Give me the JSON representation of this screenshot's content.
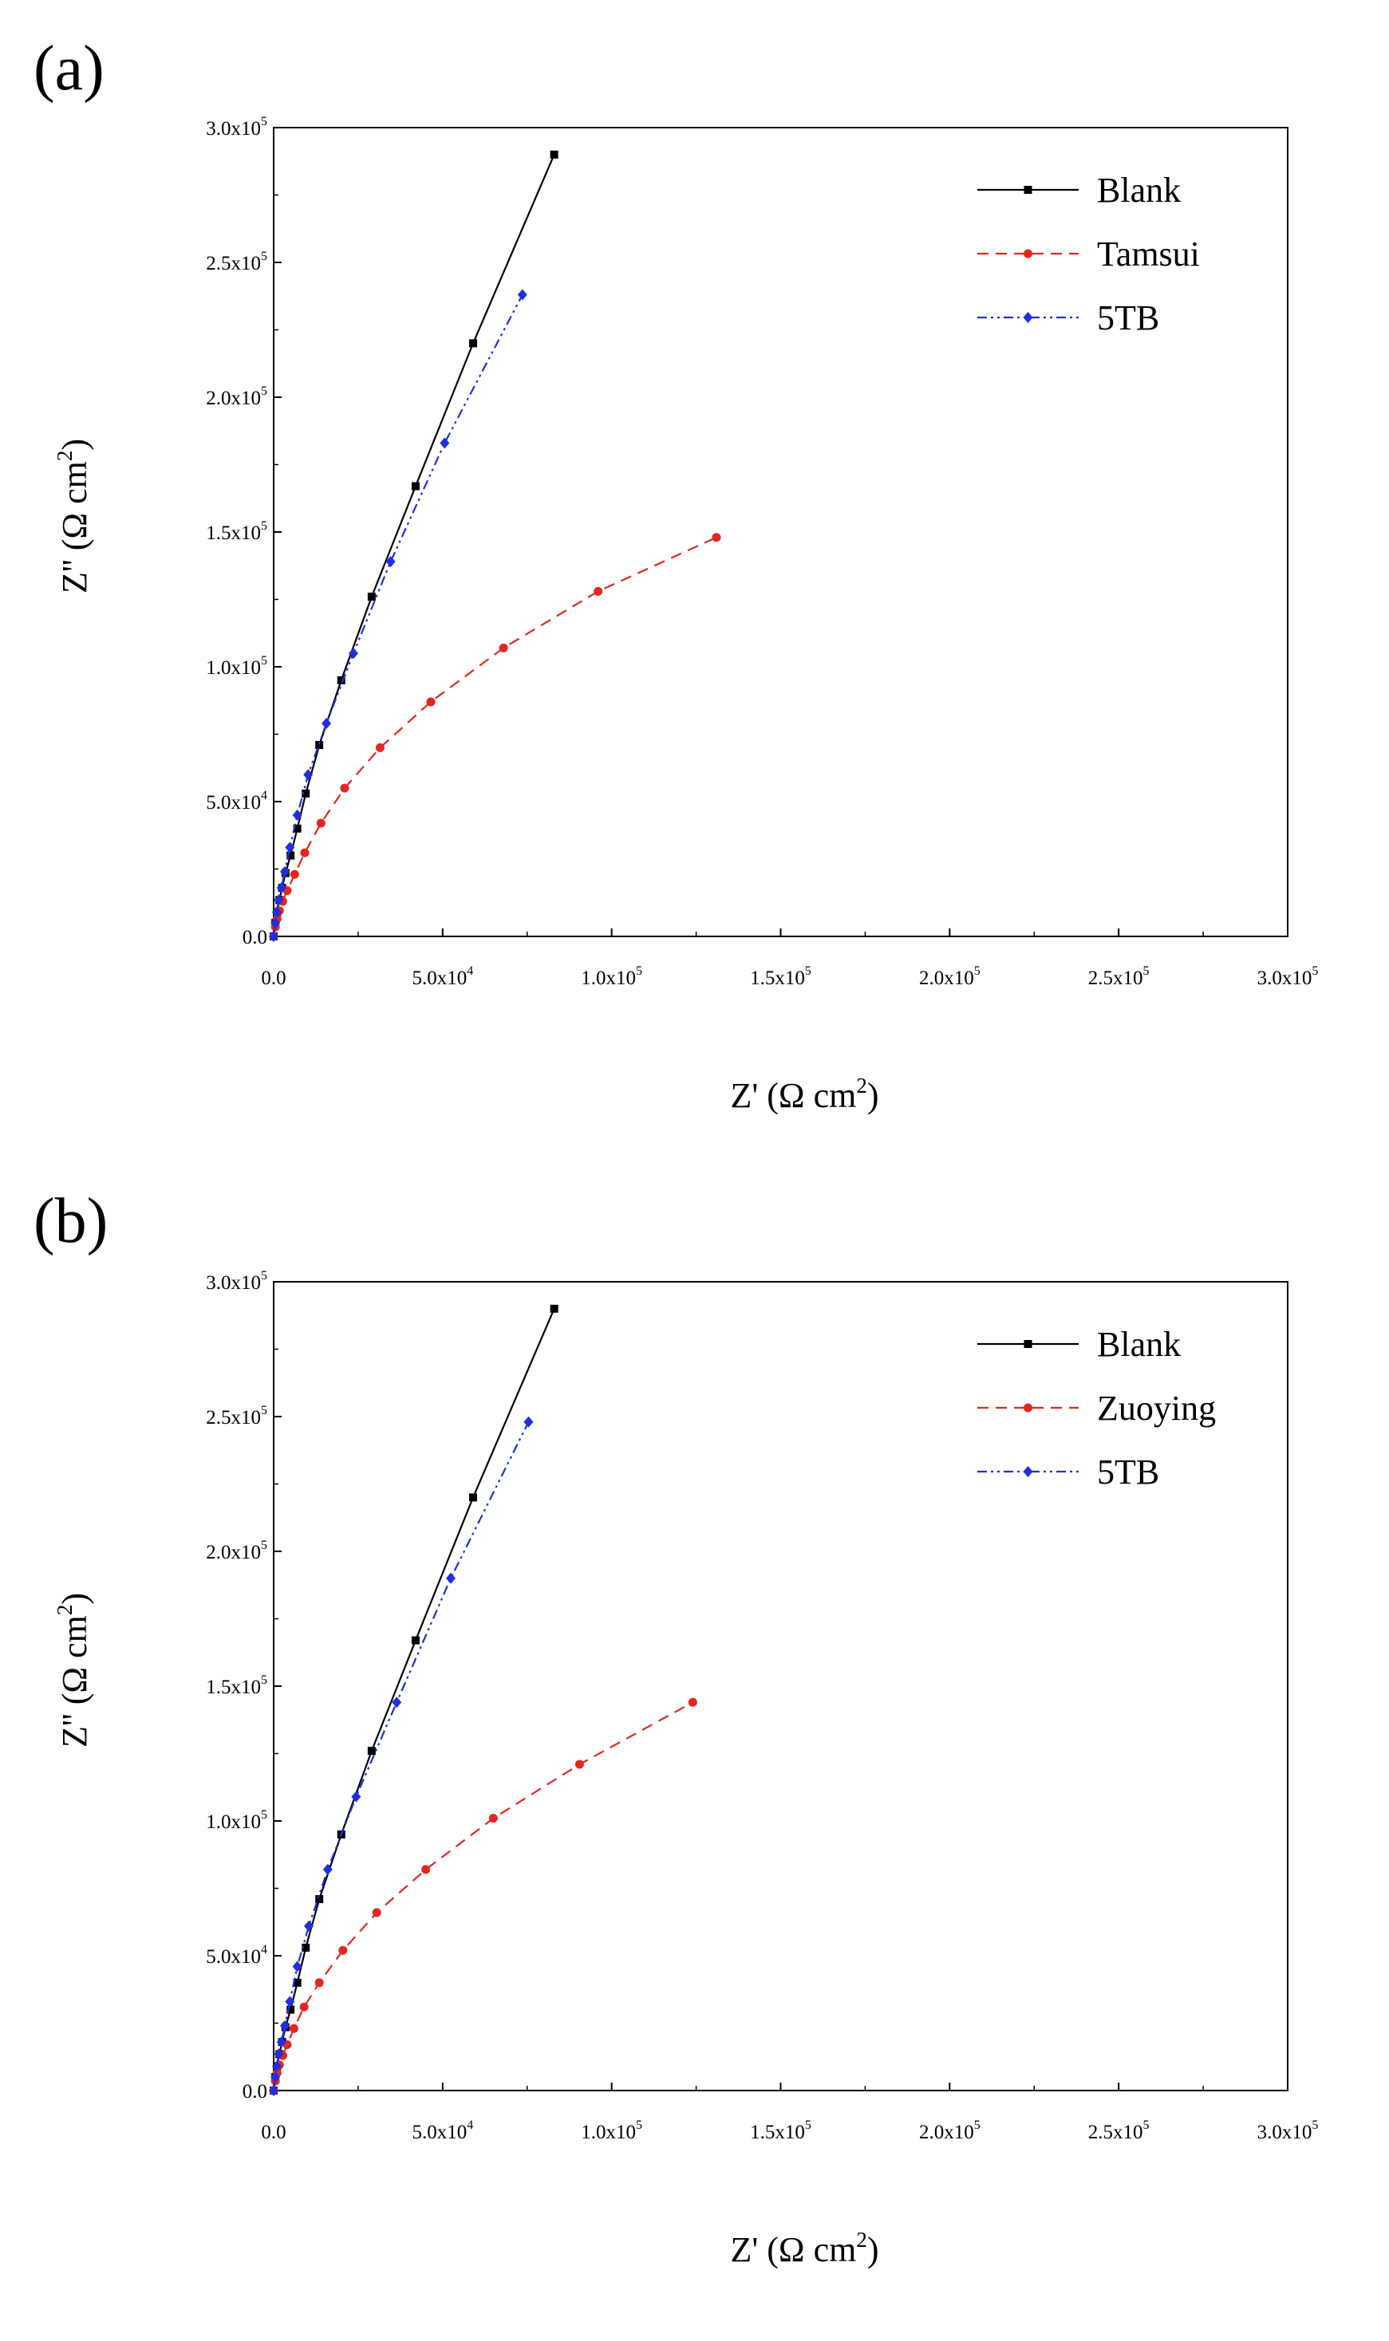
{
  "chart_data": [
    {
      "type": "line",
      "panel_label": "(a)",
      "xlabel": "Z' (Ω cm²)",
      "ylabel": "Z'' (Ω cm²)",
      "xlim": [
        0,
        300000
      ],
      "ylim": [
        0,
        300000
      ],
      "x_ticks": [
        0,
        50000,
        100000,
        150000,
        200000,
        250000,
        300000
      ],
      "x_tick_labels": [
        "0.0",
        "5.0x10⁴",
        "1.0x10⁵",
        "1.5x10⁵",
        "2.0x10⁵",
        "2.5x10⁵",
        "3.0x10⁵"
      ],
      "y_ticks": [
        0,
        50000,
        100000,
        150000,
        200000,
        250000,
        300000
      ],
      "y_tick_labels": [
        "0.0",
        "5.0x10⁴",
        "1.0x10⁵",
        "1.5x10⁵",
        "2.0x10⁵",
        "2.5x10⁵",
        "3.0x10⁵"
      ],
      "legend_position": "top-right",
      "series": [
        {
          "name": "Blank",
          "color": "#000000",
          "dash": "solid",
          "marker": "square",
          "x": [
            0,
            500,
            1000,
            1700,
            2500,
            3500,
            5000,
            7000,
            9500,
            13500,
            20000,
            29000,
            42000,
            59000,
            83000
          ],
          "y": [
            0,
            5000,
            9000,
            13500,
            18000,
            23500,
            30000,
            40000,
            53000,
            71000,
            95000,
            126000,
            167000,
            220000,
            290000
          ]
        },
        {
          "name": "Tamsui",
          "color": "#e3261f",
          "dash": "dashed",
          "marker": "circle",
          "x": [
            0,
            500,
            1000,
            1700,
            2700,
            4000,
            6200,
            9200,
            14000,
            21000,
            31500,
            46500,
            68000,
            96000,
            131000
          ],
          "y": [
            0,
            3500,
            6500,
            9500,
            13000,
            17000,
            23000,
            31000,
            42000,
            55000,
            70000,
            87000,
            107000,
            128000,
            148000
          ]
        },
        {
          "name": "5TB",
          "color": "#1f2fe0",
          "dash": "dashdotdot",
          "marker": "diamond",
          "x": [
            0,
            500,
            900,
            1500,
            2300,
            3300,
            4800,
            7000,
            10200,
            15600,
            23600,
            34600,
            50600,
            73600
          ],
          "y": [
            0,
            5000,
            9000,
            13500,
            18000,
            24000,
            33000,
            45000,
            60000,
            79000,
            105000,
            139000,
            183000,
            238000
          ]
        }
      ]
    },
    {
      "type": "line",
      "panel_label": "(b)",
      "xlabel": "Z' (Ω cm²)",
      "ylabel": "Z'' (Ω cm²)",
      "xlim": [
        0,
        300000
      ],
      "ylim": [
        0,
        300000
      ],
      "x_ticks": [
        0,
        50000,
        100000,
        150000,
        200000,
        250000,
        300000
      ],
      "x_tick_labels": [
        "0.0",
        "5.0x10⁴",
        "1.0x10⁵",
        "1.5x10⁵",
        "2.0x10⁵",
        "2.5x10⁵",
        "3.0x10⁵"
      ],
      "y_ticks": [
        0,
        50000,
        100000,
        150000,
        200000,
        250000,
        300000
      ],
      "y_tick_labels": [
        "0.0",
        "5.0x10⁴",
        "1.0x10⁵",
        "1.5x10⁵",
        "2.0x10⁵",
        "2.5x10⁵",
        "3.0x10⁵"
      ],
      "legend_position": "top-right",
      "series": [
        {
          "name": "Blank",
          "color": "#000000",
          "dash": "solid",
          "marker": "square",
          "x": [
            0,
            500,
            1000,
            1700,
            2500,
            3500,
            5000,
            7000,
            9500,
            13500,
            20000,
            29000,
            42000,
            59000,
            83000
          ],
          "y": [
            0,
            5000,
            9000,
            13500,
            18000,
            23500,
            30000,
            40000,
            53000,
            71000,
            95000,
            126000,
            167000,
            220000,
            290000
          ]
        },
        {
          "name": "Zuoying",
          "color": "#e3261f",
          "dash": "dashed",
          "marker": "circle",
          "x": [
            0,
            500,
            1000,
            1700,
            2700,
            4000,
            6000,
            9000,
            13500,
            20500,
            30500,
            45000,
            65000,
            90500,
            124000
          ],
          "y": [
            0,
            3500,
            6500,
            9500,
            13000,
            17000,
            23000,
            31000,
            40000,
            52000,
            66000,
            82000,
            101000,
            121000,
            144000
          ]
        },
        {
          "name": "5TB",
          "color": "#1f2fe0",
          "dash": "dashdotdot",
          "marker": "diamond",
          "x": [
            0,
            500,
            900,
            1500,
            2300,
            3300,
            4800,
            7000,
            10400,
            16000,
            24400,
            36400,
            52400,
            75400
          ],
          "y": [
            0,
            5000,
            9000,
            13500,
            18000,
            24000,
            33000,
            46000,
            61000,
            82000,
            109000,
            144000,
            190000,
            248000
          ]
        }
      ]
    }
  ]
}
